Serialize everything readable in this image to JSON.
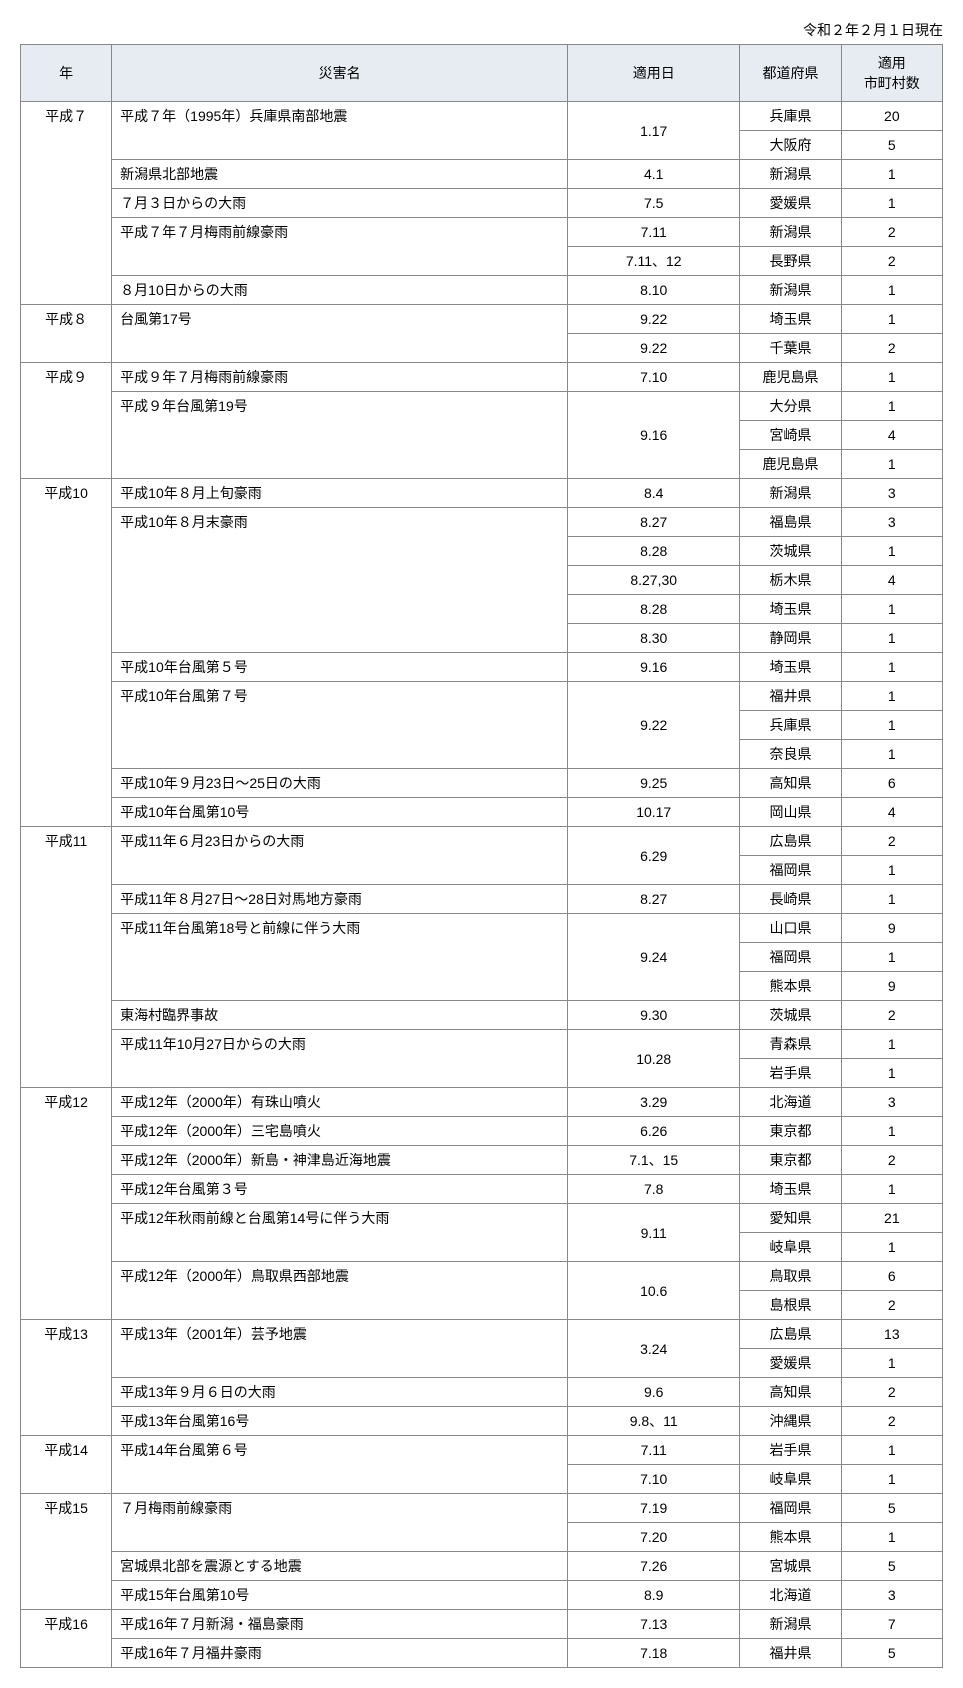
{
  "caption": "令和２年２月１日現在",
  "headers": {
    "year": "年",
    "name": "災害名",
    "date": "適用日",
    "pref": "都道府県",
    "count": "適用\n市町村数"
  },
  "rows": [
    {
      "year": "平成７",
      "yearSpan": 7,
      "name": "平成７年（1995年）兵庫県南部地震",
      "nameSpan": 2,
      "date": "1.17",
      "dateSpan": 2,
      "pref": "兵庫県",
      "count": "20"
    },
    {
      "pref": "大阪府",
      "count": "5"
    },
    {
      "name": "新潟県北部地震",
      "nameSpan": 1,
      "date": "4.1",
      "dateSpan": 1,
      "pref": "新潟県",
      "count": "1"
    },
    {
      "name": "７月３日からの大雨",
      "nameSpan": 1,
      "date": "7.5",
      "dateSpan": 1,
      "pref": "愛媛県",
      "count": "1"
    },
    {
      "name": "平成７年７月梅雨前線豪雨",
      "nameSpan": 2,
      "date": "7.11",
      "dateSpan": 1,
      "pref": "新潟県",
      "count": "2"
    },
    {
      "date": "7.11、12",
      "dateSpan": 1,
      "pref": "長野県",
      "count": "2"
    },
    {
      "name": "８月10日からの大雨",
      "nameSpan": 1,
      "date": "8.10",
      "dateSpan": 1,
      "pref": "新潟県",
      "count": "1"
    },
    {
      "year": "平成８",
      "yearSpan": 2,
      "name": "台風第17号",
      "nameSpan": 2,
      "date": "9.22",
      "dateSpan": 1,
      "pref": "埼玉県",
      "count": "1"
    },
    {
      "date": "9.22",
      "dateSpan": 1,
      "pref": "千葉県",
      "count": "2"
    },
    {
      "year": "平成９",
      "yearSpan": 4,
      "name": "平成９年７月梅雨前線豪雨",
      "nameSpan": 1,
      "date": "7.10",
      "dateSpan": 1,
      "pref": "鹿児島県",
      "count": "1"
    },
    {
      "name": "平成９年台風第19号",
      "nameSpan": 3,
      "date": "9.16",
      "dateSpan": 3,
      "pref": "大分県",
      "count": "1"
    },
    {
      "pref": "宮崎県",
      "count": "4"
    },
    {
      "pref": "鹿児島県",
      "count": "1"
    },
    {
      "year": "平成10",
      "yearSpan": 12,
      "name": "平成10年８月上旬豪雨",
      "nameSpan": 1,
      "date": "8.4",
      "dateSpan": 1,
      "pref": "新潟県",
      "count": "3"
    },
    {
      "name": "平成10年８月末豪雨",
      "nameSpan": 5,
      "date": "8.27",
      "dateSpan": 1,
      "pref": "福島県",
      "count": "3"
    },
    {
      "date": "8.28",
      "dateSpan": 1,
      "pref": "茨城県",
      "count": "1"
    },
    {
      "date": "8.27,30",
      "dateSpan": 1,
      "pref": "栃木県",
      "count": "4"
    },
    {
      "date": "8.28",
      "dateSpan": 1,
      "pref": "埼玉県",
      "count": "1"
    },
    {
      "date": "8.30",
      "dateSpan": 1,
      "pref": "静岡県",
      "count": "1"
    },
    {
      "name": "平成10年台風第５号",
      "nameSpan": 1,
      "date": "9.16",
      "dateSpan": 1,
      "pref": "埼玉県",
      "count": "1"
    },
    {
      "name": "平成10年台風第７号",
      "nameSpan": 3,
      "date": "9.22",
      "dateSpan": 3,
      "pref": "福井県",
      "count": "1"
    },
    {
      "pref": "兵庫県",
      "count": "1"
    },
    {
      "pref": "奈良県",
      "count": "1"
    },
    {
      "name": "平成10年９月23日〜25日の大雨",
      "nameSpan": 1,
      "date": "9.25",
      "dateSpan": 1,
      "pref": "高知県",
      "count": "6"
    },
    {
      "name": "平成10年台風第10号",
      "nameSpan": 1,
      "date": "10.17",
      "dateSpan": 1,
      "pref": "岡山県",
      "count": "4"
    },
    {
      "year": "平成11",
      "yearSpan": 9,
      "name": "平成11年６月23日からの大雨",
      "nameSpan": 2,
      "date": "6.29",
      "dateSpan": 2,
      "pref": "広島県",
      "count": "2"
    },
    {
      "pref": "福岡県",
      "count": "1"
    },
    {
      "name": "平成11年８月27日〜28日対馬地方豪雨",
      "nameSpan": 1,
      "date": "8.27",
      "dateSpan": 1,
      "pref": "長崎県",
      "count": "1"
    },
    {
      "name": "平成11年台風第18号と前線に伴う大雨",
      "nameSpan": 3,
      "date": "9.24",
      "dateSpan": 3,
      "pref": "山口県",
      "count": "9"
    },
    {
      "pref": "福岡県",
      "count": "1"
    },
    {
      "pref": "熊本県",
      "count": "9"
    },
    {
      "name": "東海村臨界事故",
      "nameSpan": 1,
      "date": "9.30",
      "dateSpan": 1,
      "pref": "茨城県",
      "count": "2"
    },
    {
      "name": "平成11年10月27日からの大雨",
      "nameSpan": 2,
      "date": "10.28",
      "dateSpan": 2,
      "pref": "青森県",
      "count": "1"
    },
    {
      "pref": "岩手県",
      "count": "1"
    },
    {
      "year": "平成12",
      "yearSpan": 8,
      "name": "平成12年（2000年）有珠山噴火",
      "nameSpan": 1,
      "date": "3.29",
      "dateSpan": 1,
      "pref": "北海道",
      "count": "3"
    },
    {
      "name": "平成12年（2000年）三宅島噴火",
      "nameSpan": 1,
      "date": "6.26",
      "dateSpan": 1,
      "pref": "東京都",
      "count": "1"
    },
    {
      "name": "平成12年（2000年）新島・神津島近海地震",
      "nameSpan": 1,
      "date": "7.1、15",
      "dateSpan": 1,
      "pref": "東京都",
      "count": "2"
    },
    {
      "name": "平成12年台風第３号",
      "nameSpan": 1,
      "date": "7.8",
      "dateSpan": 1,
      "pref": "埼玉県",
      "count": "1"
    },
    {
      "name": "平成12年秋雨前線と台風第14号に伴う大雨",
      "nameSpan": 2,
      "date": "9.11",
      "dateSpan": 2,
      "pref": "愛知県",
      "count": "21"
    },
    {
      "pref": "岐阜県",
      "count": "1"
    },
    {
      "name": "平成12年（2000年）鳥取県西部地震",
      "nameSpan": 2,
      "date": "10.6",
      "dateSpan": 2,
      "pref": "鳥取県",
      "count": "6"
    },
    {
      "pref": "島根県",
      "count": "2"
    },
    {
      "year": "平成13",
      "yearSpan": 4,
      "name": "平成13年（2001年）芸予地震",
      "nameSpan": 2,
      "date": "3.24",
      "dateSpan": 2,
      "pref": "広島県",
      "count": "13"
    },
    {
      "pref": "愛媛県",
      "count": "1"
    },
    {
      "name": "平成13年９月６日の大雨",
      "nameSpan": 1,
      "date": "9.6",
      "dateSpan": 1,
      "pref": "高知県",
      "count": "2"
    },
    {
      "name": "平成13年台風第16号",
      "nameSpan": 1,
      "date": "9.8、11",
      "dateSpan": 1,
      "pref": "沖縄県",
      "count": "2"
    },
    {
      "year": "平成14",
      "yearSpan": 2,
      "name": "平成14年台風第６号",
      "nameSpan": 2,
      "date": "7.11",
      "dateSpan": 1,
      "pref": "岩手県",
      "count": "1"
    },
    {
      "date": "7.10",
      "dateSpan": 1,
      "pref": "岐阜県",
      "count": "1"
    },
    {
      "year": "平成15",
      "yearSpan": 4,
      "name": "７月梅雨前線豪雨",
      "nameSpan": 2,
      "date": "7.19",
      "dateSpan": 1,
      "pref": "福岡県",
      "count": "5"
    },
    {
      "date": "7.20",
      "dateSpan": 1,
      "pref": "熊本県",
      "count": "1"
    },
    {
      "name": "宮城県北部を震源とする地震",
      "nameSpan": 1,
      "date": "7.26",
      "dateSpan": 1,
      "pref": "宮城県",
      "count": "5"
    },
    {
      "name": "平成15年台風第10号",
      "nameSpan": 1,
      "date": "8.9",
      "dateSpan": 1,
      "pref": "北海道",
      "count": "3"
    },
    {
      "year": "平成16",
      "yearSpan": 2,
      "name": "平成16年７月新潟・福島豪雨",
      "nameSpan": 1,
      "date": "7.13",
      "dateSpan": 1,
      "pref": "新潟県",
      "count": "7"
    },
    {
      "name": "平成16年７月福井豪雨",
      "nameSpan": 1,
      "date": "7.18",
      "dateSpan": 1,
      "pref": "福井県",
      "count": "5"
    }
  ]
}
